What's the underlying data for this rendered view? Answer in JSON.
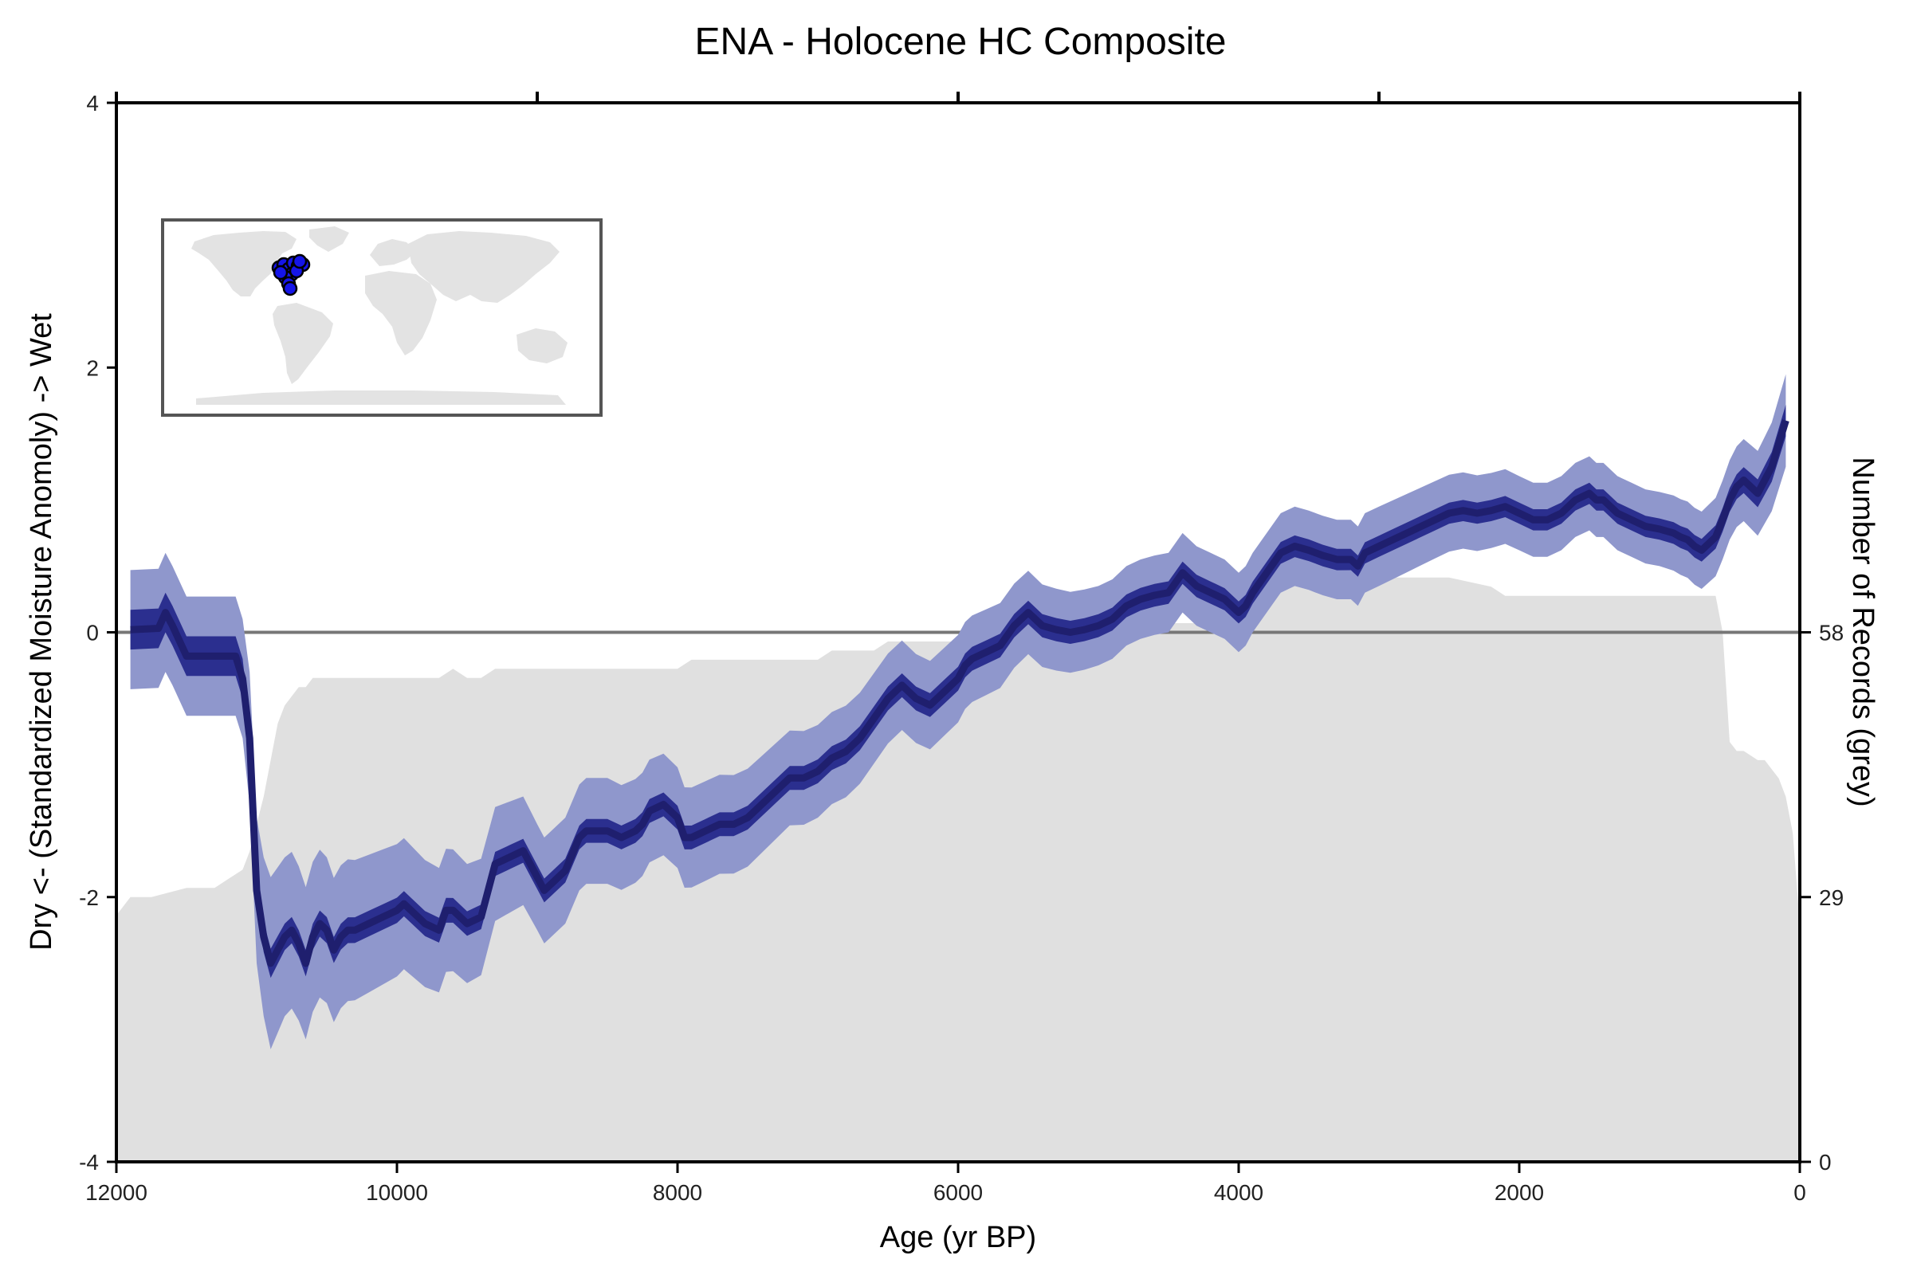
{
  "chart_data": {
    "type": "line",
    "title": "ENA - Holocene HC Composite",
    "xlabel": "Age (yr BP)",
    "ylabel": "Dry <- (Standardized Moisture Anomoly) -> Wet",
    "y2label": "Number of Records (grey)",
    "xlim": [
      12000,
      0
    ],
    "ylim": [
      -4,
      4
    ],
    "x_ticks": [
      12000,
      10000,
      8000,
      6000,
      4000,
      2000,
      0
    ],
    "x_top_ticks": [
      12000,
      9000,
      6000,
      3000,
      0
    ],
    "y_ticks": [
      4,
      2,
      0,
      -2,
      -4
    ],
    "y2_ticks": [
      0,
      29,
      58
    ],
    "y2_max": 116,
    "zero_line": 0,
    "colors": {
      "median": "#1f1f6e",
      "band_inner": "#2b2f8f",
      "band_outer": "#8f97cc",
      "records": "#e0e0e0",
      "zero_line": "#777777",
      "map_land": "#e3e3e3",
      "site_marker": "#1515e8"
    },
    "inset_map": {
      "description": "world map inset",
      "sites_region": "eastern North America"
    },
    "series": [
      {
        "name": "median composite",
        "x": [
          11900,
          11700,
          11650,
          11600,
          11500,
          11400,
          11300,
          11200,
          11150,
          11100,
          11050,
          11000,
          10950,
          10900,
          10850,
          10800,
          10750,
          10700,
          10650,
          10600,
          10550,
          10500,
          10450,
          10400,
          10350,
          10300,
          10200,
          10100,
          10000,
          9950,
          9900,
          9800,
          9700,
          9650,
          9600,
          9550,
          9500,
          9400,
          9300,
          9200,
          9100,
          9050,
          9000,
          8950,
          8900,
          8800,
          8700,
          8650,
          8600,
          8500,
          8400,
          8300,
          8250,
          8200,
          8100,
          8000,
          7950,
          7900,
          7800,
          7700,
          7600,
          7500,
          7400,
          7300,
          7200,
          7100,
          7000,
          6900,
          6800,
          6700,
          6600,
          6500,
          6400,
          6300,
          6200,
          6100,
          6000,
          5950,
          5900,
          5800,
          5700,
          5600,
          5500,
          5400,
          5300,
          5200,
          5100,
          5000,
          4900,
          4800,
          4700,
          4600,
          4500,
          4400,
          4300,
          4200,
          4100,
          4000,
          3950,
          3900,
          3800,
          3700,
          3600,
          3500,
          3450,
          3400,
          3300,
          3200,
          3150,
          3100,
          3000,
          2900,
          2800,
          2700,
          2600,
          2500,
          2400,
          2300,
          2200,
          2100,
          2000,
          1900,
          1800,
          1700,
          1600,
          1500,
          1450,
          1400,
          1300,
          1200,
          1100,
          1000,
          900,
          850,
          800,
          750,
          700,
          600,
          550,
          500,
          450,
          400,
          350,
          300,
          250,
          200,
          100
        ],
        "y": [
          0.02,
          0.03,
          0.15,
          0.05,
          -0.18,
          -0.18,
          -0.18,
          -0.18,
          -0.18,
          -0.35,
          -0.8,
          -1.95,
          -2.3,
          -2.5,
          -2.4,
          -2.3,
          -2.25,
          -2.35,
          -2.5,
          -2.3,
          -2.2,
          -2.25,
          -2.4,
          -2.3,
          -2.25,
          -2.25,
          -2.2,
          -2.15,
          -2.1,
          -2.05,
          -2.1,
          -2.2,
          -2.25,
          -2.1,
          -2.1,
          -2.15,
          -2.2,
          -2.15,
          -1.75,
          -1.7,
          -1.65,
          -1.75,
          -1.85,
          -1.95,
          -1.9,
          -1.8,
          -1.55,
          -1.5,
          -1.5,
          -1.5,
          -1.55,
          -1.5,
          -1.45,
          -1.35,
          -1.3,
          -1.4,
          -1.55,
          -1.55,
          -1.5,
          -1.45,
          -1.45,
          -1.4,
          -1.3,
          -1.2,
          -1.1,
          -1.1,
          -1.05,
          -0.95,
          -0.9,
          -0.8,
          -0.65,
          -0.5,
          -0.4,
          -0.5,
          -0.55,
          -0.45,
          -0.35,
          -0.25,
          -0.2,
          -0.15,
          -0.1,
          0.05,
          0.15,
          0.05,
          0.02,
          0.0,
          0.02,
          0.05,
          0.1,
          0.2,
          0.25,
          0.28,
          0.3,
          0.45,
          0.35,
          0.3,
          0.25,
          0.15,
          0.2,
          0.3,
          0.45,
          0.6,
          0.65,
          0.62,
          0.6,
          0.58,
          0.55,
          0.55,
          0.5,
          0.6,
          0.65,
          0.7,
          0.75,
          0.8,
          0.85,
          0.9,
          0.92,
          0.9,
          0.92,
          0.95,
          0.9,
          0.85,
          0.85,
          0.9,
          1.0,
          1.05,
          1.0,
          1.0,
          0.9,
          0.85,
          0.8,
          0.78,
          0.75,
          0.72,
          0.7,
          0.65,
          0.62,
          0.72,
          0.85,
          1.0,
          1.1,
          1.15,
          1.1,
          1.05,
          1.15,
          1.25,
          1.6
        ]
      },
      {
        "name": "inner uncertainty band (half-width)",
        "x": [
          11900,
          11100,
          11000,
          10800,
          9000,
          6000,
          3000,
          1000,
          500,
          100
        ],
        "y": [
          0.15,
          0.15,
          0.12,
          0.1,
          0.09,
          0.09,
          0.08,
          0.08,
          0.09,
          0.12
        ]
      },
      {
        "name": "outer uncertainty band (half-width)",
        "x": [
          11900,
          11100,
          11050,
          11000,
          10900,
          10800,
          10500,
          10000,
          9500,
          9000,
          8500,
          8000,
          7500,
          7000,
          6000,
          5000,
          4000,
          3000,
          2000,
          1000,
          500,
          300,
          100
        ],
        "y": [
          0.45,
          0.45,
          0.5,
          0.55,
          0.65,
          0.6,
          0.55,
          0.5,
          0.45,
          0.4,
          0.4,
          0.38,
          0.37,
          0.35,
          0.33,
          0.3,
          0.3,
          0.3,
          0.28,
          0.28,
          0.3,
          0.32,
          0.35
        ]
      },
      {
        "name": "number of records",
        "x": [
          12000,
          11900,
          11750,
          11500,
          11300,
          11200,
          11100,
          11050,
          11000,
          10950,
          10900,
          10850,
          10800,
          10750,
          10700,
          10650,
          10600,
          9800,
          9700,
          9600,
          9500,
          9400,
          9300,
          8000,
          7900,
          7000,
          6900,
          6600,
          6500,
          5700,
          5600,
          4700,
          4600,
          4200,
          4100,
          3900,
          3800,
          3700,
          2500,
          2200,
          2100,
          2000,
          1000,
          600,
          550,
          500,
          450,
          400,
          300,
          250,
          200,
          150,
          100,
          50,
          0
        ],
        "y": [
          27,
          29,
          29,
          30,
          30,
          31,
          32,
          34,
          37,
          40,
          44,
          48,
          50,
          51,
          52,
          52,
          53,
          53,
          53,
          54,
          53,
          53,
          54,
          54,
          55,
          55,
          56,
          56,
          57,
          57,
          58,
          58,
          59,
          59,
          60,
          60,
          62,
          64,
          64,
          63,
          62,
          62,
          62,
          62,
          58,
          46,
          45,
          45,
          44,
          44,
          43,
          42,
          40,
          36,
          26
        ]
      }
    ]
  }
}
